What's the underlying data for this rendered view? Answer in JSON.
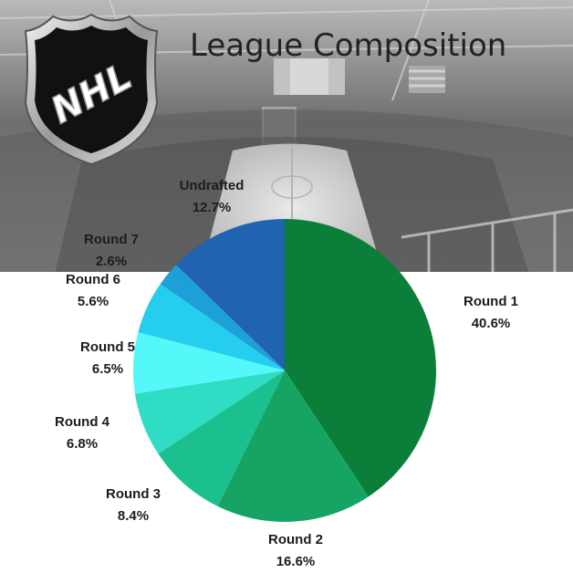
{
  "header": {
    "title": "League Composition"
  },
  "logo": {
    "text": "NHL",
    "icon": "nhl-shield-logo"
  },
  "background": {
    "scene": "hockey-arena-photo",
    "tint": "#7b7b7b"
  },
  "chart_data": {
    "type": "pie",
    "title": "League Composition",
    "start": "12 o'clock, clockwise",
    "slices": [
      {
        "label": "Round 1",
        "value": 40.6,
        "display": "40.6%",
        "color": "#0b7f3a"
      },
      {
        "label": "Round 2",
        "value": 16.6,
        "display": "16.6%",
        "color": "#16a464"
      },
      {
        "label": "Round 3",
        "value": 8.4,
        "display": "8.4%",
        "color": "#1cc08e"
      },
      {
        "label": "Round 4",
        "value": 6.8,
        "display": "6.8%",
        "color": "#2fdcc4"
      },
      {
        "label": "Round 5",
        "value": 6.5,
        "display": "6.5%",
        "color": "#54f8f8"
      },
      {
        "label": "Round 6",
        "value": 5.6,
        "display": "5.6%",
        "color": "#25cdee"
      },
      {
        "label": "Round 7",
        "value": 2.6,
        "display": "2.6%",
        "color": "#1d9fd8"
      },
      {
        "label": "Undrafted",
        "value": 12.7,
        "display": "12.7%",
        "color": "#1f63b1"
      }
    ]
  }
}
